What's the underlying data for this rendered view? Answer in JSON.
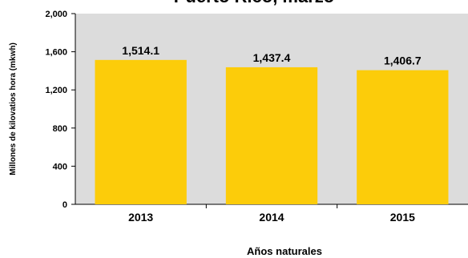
{
  "chart_data": {
    "type": "bar",
    "title": "Puerto Rico, marzo",
    "categories": [
      "2013",
      "2014",
      "2015"
    ],
    "values": [
      1514.1,
      1437.4,
      1406.7
    ],
    "value_labels": [
      "1,514.1",
      "1,437.4",
      "1,406.7"
    ],
    "xlabel": "Años naturales",
    "ylabel": "Millones de kilovatios hora (mkwh)",
    "ylim": [
      0,
      2000
    ],
    "yticks": [
      0,
      400,
      800,
      1200,
      1600,
      2000
    ],
    "ytick_labels": [
      "0",
      "400",
      "800",
      "1,200",
      "1,600",
      "2,000"
    ],
    "grid": false,
    "legend": "none",
    "bar_color": "#FCCC0A"
  }
}
